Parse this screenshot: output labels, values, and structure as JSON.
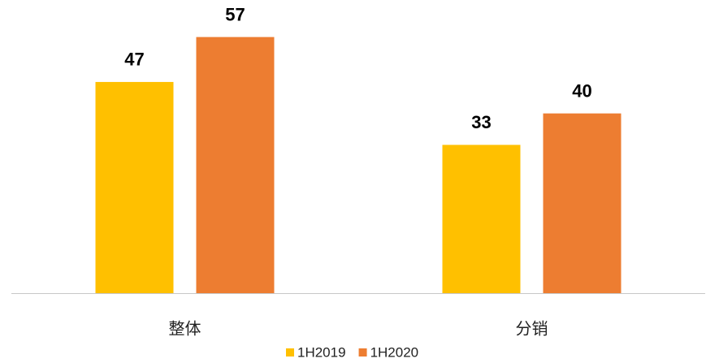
{
  "chart_data": {
    "type": "bar",
    "categories": [
      "整体",
      "分销"
    ],
    "series": [
      {
        "name": "1H2019",
        "color": "#FFC000",
        "values": [
          47,
          33
        ]
      },
      {
        "name": "1H2020",
        "color": "#ED7D31",
        "values": [
          57,
          40
        ]
      }
    ],
    "ylim": [
      0,
      60
    ],
    "grid": false,
    "legend": "bottom"
  }
}
